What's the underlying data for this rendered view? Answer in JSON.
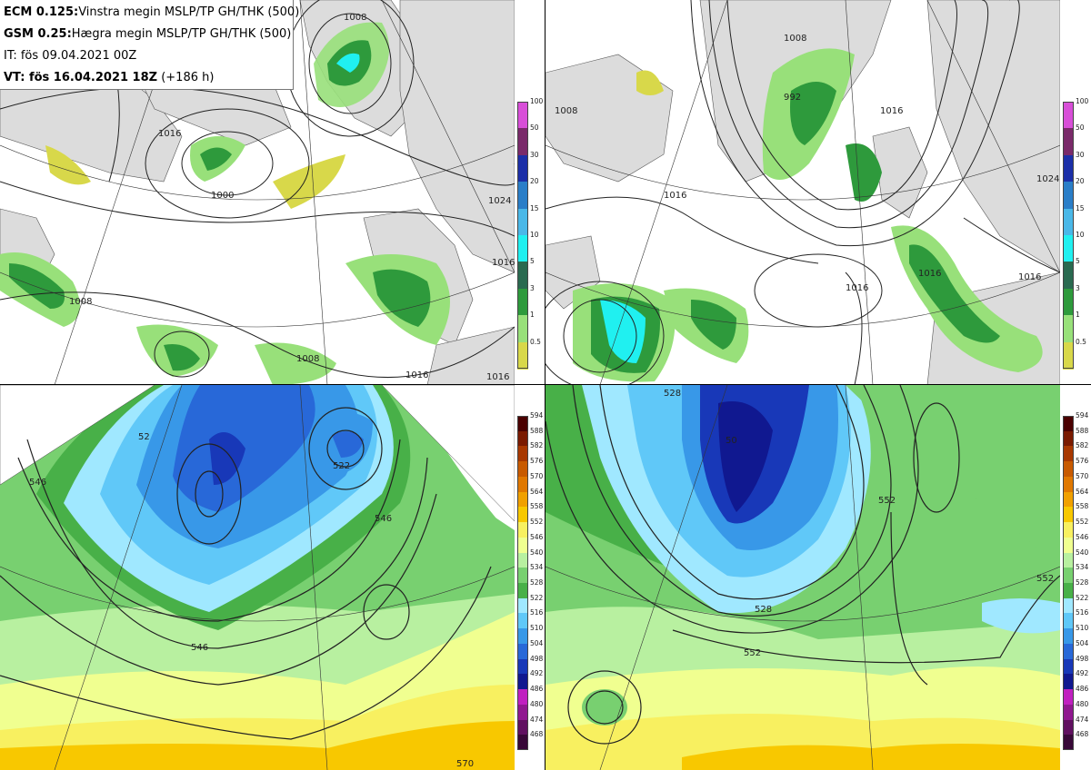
{
  "header": {
    "ecm_label": "ECM 0.125:",
    "ecm_text": "Vinstra megin MSLP/TP GH/THK (500)",
    "gsm_label": "GSM 0.25:",
    "gsm_text": "Hægra megin MSLP/TP GH/THK (500)",
    "it_text": "IT: fös 09.04.2021 00Z",
    "vt_label": "VT: fös 16.04.2021 18Z",
    "vt_suffix": "(+186 h)"
  },
  "precip_scale": {
    "levels": [
      "100",
      "50",
      "30",
      "20",
      "15",
      "10",
      "5",
      "3",
      "1",
      "0.5"
    ],
    "colors": [
      "#d84fd8",
      "#7a2a6a",
      "#1c2fa8",
      "#2a7ec8",
      "#4ab8e8",
      "#20f0f0",
      "#2a6a50",
      "#2e9a3c",
      "#98e07a",
      "#d8d84a"
    ]
  },
  "thickness_scale": {
    "levels": [
      "594",
      "588",
      "582",
      "576",
      "570",
      "564",
      "558",
      "552",
      "546",
      "540",
      "534",
      "528",
      "522",
      "516",
      "510",
      "504",
      "498",
      "492",
      "486",
      "480",
      "474",
      "468"
    ],
    "colors": [
      "#4a0000",
      "#7a1a00",
      "#a83800",
      "#c85a00",
      "#e07800",
      "#f0a000",
      "#f8c800",
      "#f8f060",
      "#f0ff90",
      "#b8f0a0",
      "#78d070",
      "#48b048",
      "#a0e8ff",
      "#60c8f8",
      "#3898e8",
      "#2868d8",
      "#1838b8",
      "#101890",
      "#c020c0",
      "#901890",
      "#601060",
      "#380838"
    ]
  },
  "contour_labels": {
    "tl": [
      "1008",
      "1016",
      "1000",
      "1024",
      "1016",
      "1008",
      "1008",
      "1016",
      "1016"
    ],
    "tr": [
      "1016",
      "1008",
      "1016",
      "1016",
      "992",
      "1008",
      "1016",
      "1024",
      "1016"
    ],
    "bl": [
      "546",
      "522",
      "546",
      "546",
      "570",
      "52"
    ],
    "br": [
      "528",
      "552",
      "528",
      "552",
      "552",
      "50"
    ]
  }
}
